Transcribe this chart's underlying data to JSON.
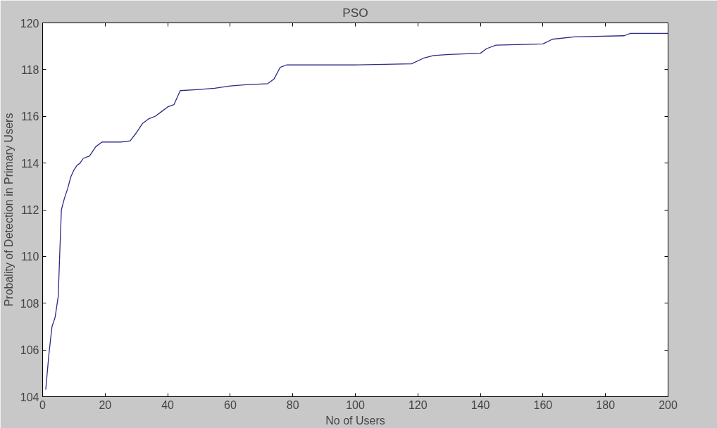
{
  "chart_data": {
    "type": "line",
    "title": "PSO",
    "xlabel": "No of Users",
    "ylabel": "Probality of Detection in Primary Users",
    "x": [
      1,
      2,
      3,
      4,
      5,
      5.5,
      6,
      7,
      8,
      9,
      10,
      11,
      12,
      13,
      15,
      17,
      19,
      25,
      28,
      30,
      32,
      34,
      36,
      38,
      40,
      42,
      44,
      50,
      55,
      60,
      65,
      72,
      74,
      76,
      78,
      100,
      118,
      122,
      125,
      130,
      140,
      142,
      145,
      160,
      163,
      170,
      186,
      188,
      200
    ],
    "series": [
      {
        "color": "#2a2a86",
        "values": [
          104.3,
          105.8,
          107.0,
          107.4,
          108.3,
          110.2,
          112.0,
          112.5,
          112.9,
          113.4,
          113.7,
          113.9,
          114.0,
          114.2,
          114.3,
          114.7,
          114.9,
          114.9,
          114.95,
          115.3,
          115.7,
          115.9,
          116.0,
          116.2,
          116.4,
          116.5,
          117.1,
          117.15,
          117.2,
          117.3,
          117.35,
          117.4,
          117.6,
          118.1,
          118.2,
          118.2,
          118.25,
          118.5,
          118.6,
          118.65,
          118.7,
          118.9,
          119.05,
          119.1,
          119.3,
          119.4,
          119.45,
          119.55,
          119.55
        ]
      }
    ],
    "xlim": [
      0,
      200
    ],
    "ylim": [
      104,
      120
    ],
    "xticks": [
      0,
      20,
      40,
      60,
      80,
      100,
      120,
      140,
      160,
      180,
      200
    ],
    "yticks": [
      104,
      106,
      108,
      110,
      112,
      114,
      116,
      118,
      120
    ],
    "grid": false,
    "line_style": "solid"
  }
}
